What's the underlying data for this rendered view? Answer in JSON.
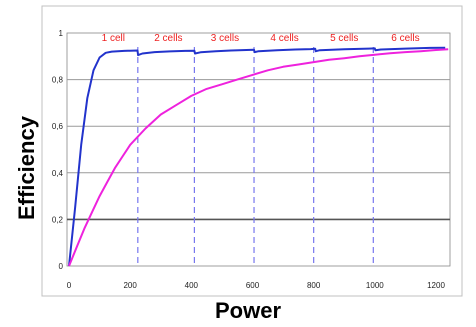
{
  "chart_data": {
    "type": "line",
    "title": "",
    "xlabel": "Power",
    "ylabel": "Efficiency",
    "xlim": [
      0,
      1250
    ],
    "ylim": [
      0,
      1
    ],
    "x_ticks": [
      "0",
      "200",
      "400",
      "600",
      "800",
      "1000",
      "1200"
    ],
    "y_ticks": [
      "0",
      "0,2",
      "0,4",
      "0,6",
      "0,8",
      "1"
    ],
    "grid": true,
    "legend": "none",
    "series": [
      {
        "color": "#2233cc",
        "x": [
          0,
          20,
          40,
          60,
          80,
          100,
          120,
          140,
          160,
          180,
          200,
          224,
          226,
          240,
          280,
          330,
          380,
          410,
          412,
          430,
          480,
          530,
          580,
          605,
          607,
          620,
          680,
          740,
          790,
          805,
          807,
          820,
          900,
          980,
          1000,
          1002,
          1020,
          1100,
          1180,
          1230
        ],
        "y": [
          0,
          0.25,
          0.52,
          0.72,
          0.84,
          0.895,
          0.915,
          0.92,
          0.922,
          0.923,
          0.924,
          0.925,
          0.905,
          0.912,
          0.918,
          0.921,
          0.923,
          0.924,
          0.912,
          0.917,
          0.922,
          0.925,
          0.927,
          0.928,
          0.918,
          0.922,
          0.926,
          0.929,
          0.931,
          0.932,
          0.922,
          0.926,
          0.93,
          0.933,
          0.934,
          0.926,
          0.929,
          0.933,
          0.936,
          0.937
        ]
      },
      {
        "color": "#ee22dd",
        "x": [
          0,
          25,
          50,
          75,
          100,
          125,
          150,
          175,
          200,
          250,
          300,
          350,
          400,
          450,
          500,
          550,
          600,
          650,
          700,
          750,
          800,
          850,
          900,
          950,
          1000,
          1050,
          1100,
          1150,
          1200,
          1240
        ],
        "y": [
          0,
          0.08,
          0.16,
          0.23,
          0.3,
          0.36,
          0.42,
          0.47,
          0.52,
          0.59,
          0.65,
          0.69,
          0.73,
          0.76,
          0.78,
          0.8,
          0.82,
          0.84,
          0.855,
          0.865,
          0.875,
          0.885,
          0.892,
          0.9,
          0.907,
          0.913,
          0.918,
          0.922,
          0.927,
          0.93
        ]
      }
    ],
    "annotations": {
      "cell_boundaries": [
        225,
        410,
        605,
        800,
        995
      ],
      "cell_labels": [
        {
          "text": "1 cell",
          "x": 145,
          "y": 0.965
        },
        {
          "text": "2 cells",
          "x": 325,
          "y": 0.965
        },
        {
          "text": "3 cells",
          "x": 510,
          "y": 0.965
        },
        {
          "text": "4 cells",
          "x": 705,
          "y": 0.965
        },
        {
          "text": "5 cells",
          "x": 900,
          "y": 0.965
        },
        {
          "text": "6 cells",
          "x": 1100,
          "y": 0.965
        }
      ]
    }
  }
}
